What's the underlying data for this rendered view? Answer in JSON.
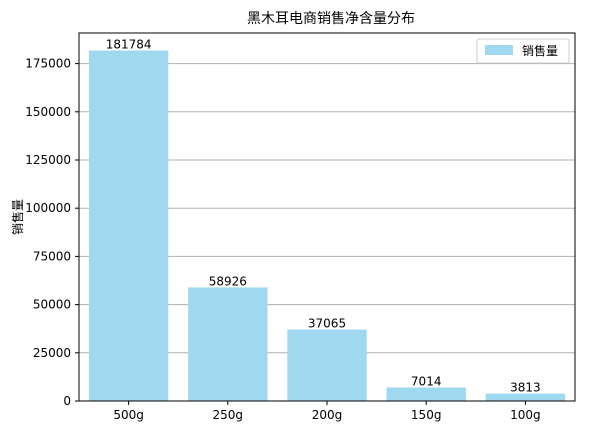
{
  "chart_data": {
    "type": "bar",
    "title": "黑木耳电商销售净含量分布",
    "xlabel": "",
    "ylabel": "销售量",
    "categories": [
      "500g",
      "250g",
      "200g",
      "150g",
      "100g"
    ],
    "series": [
      {
        "name": "销售量",
        "values": [
          181784,
          58926,
          37065,
          7014,
          3813
        ]
      }
    ],
    "ylim": [
      0,
      190872
    ],
    "yticks": [
      0,
      25000,
      50000,
      75000,
      100000,
      125000,
      150000,
      175000
    ],
    "grid": "y",
    "legend_position": "top-right",
    "bar_color": "#a0d8ef"
  }
}
